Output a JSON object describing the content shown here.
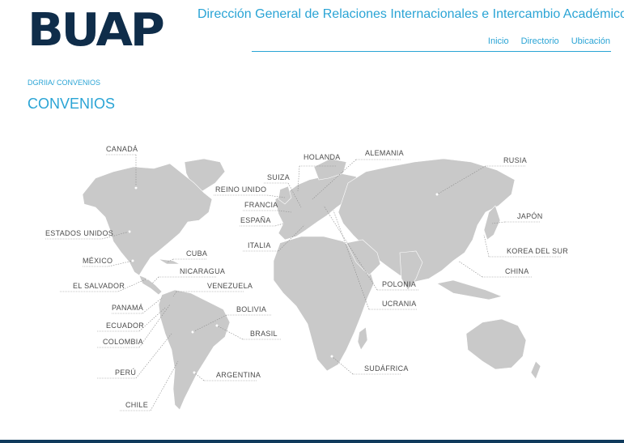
{
  "header": {
    "logo_text": "BUAP",
    "site_title": "Dirección General de Relaciones Internacionales e Intercambio Académico",
    "nav": [
      "Inicio",
      "Directorio",
      "Ubicación"
    ]
  },
  "breadcrumb": "DGRIIA/ CONVENIOS",
  "page_title": "CONVENIOS",
  "map": {
    "land_color": "#c9c9c9",
    "countries": [
      "CANADÁ",
      "ESTADOS UNIDOS",
      "MÉXICO",
      "EL SALVADOR",
      "CUBA",
      "NICARAGUA",
      "VENEZUELA",
      "PANAMÁ",
      "ECUADOR",
      "COLOMBIA",
      "BOLIVIA",
      "BRASIL",
      "PERÚ",
      "ARGENTINA",
      "CHILE",
      "HOLANDA",
      "ALEMANIA",
      "SUIZA",
      "REINO UNIDO",
      "FRANCIA",
      "ESPAÑA",
      "ITALIA",
      "RUSIA",
      "JAPÓN",
      "KOREA DEL SUR",
      "CHINA",
      "POLONIA",
      "UCRANIA",
      "SUDÁFRICA"
    ]
  },
  "colors": {
    "accent": "#2aa4d5",
    "logo": "#0f2d4a",
    "footer": "#0f3a5c"
  }
}
